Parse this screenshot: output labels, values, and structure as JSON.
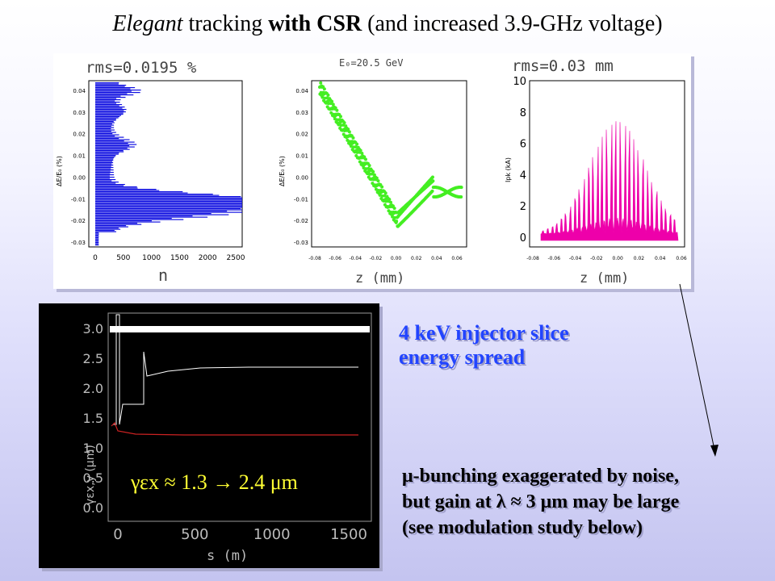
{
  "title": {
    "part1": "Elegant",
    "part2": " tracking ",
    "part3": "with CSR",
    "part4": " (and increased 3.9-GHz voltage)"
  },
  "hist_plot": {
    "header": "rms=0.0195 %",
    "xlabel": "n",
    "ylabel": "ΔE/E₀ (%)",
    "y_ticks": [
      "0.04",
      "0.03",
      "0.02",
      "0.01",
      "0.00",
      "-0.01",
      "-0.02",
      "-0.03"
    ],
    "x_ticks": [
      "0",
      "500",
      "1000",
      "1500",
      "2000",
      "2500"
    ]
  },
  "phase_plot": {
    "header": "E₀=20.5 GeV",
    "xlabel": "z (mm)",
    "ylabel": "ΔE/E₀ (%)",
    "y_ticks": [
      "0.04",
      "0.03",
      "0.02",
      "0.01",
      "0.00",
      "-0.01",
      "-0.02",
      "-0.03"
    ],
    "x_ticks": [
      "-0.08",
      "-0.06",
      "-0.04",
      "-0.02",
      "0.00",
      "0.02",
      "0.04",
      "0.06"
    ]
  },
  "current_plot": {
    "header": "rms=0.03 mm",
    "xlabel": "z (mm)",
    "ylabel": "Ipk (kA)",
    "y_ticks": [
      "10",
      "8",
      "6",
      "4",
      "2",
      "0"
    ],
    "x_ticks": [
      "-0.08",
      "-0.06",
      "-0.04",
      "-0.02",
      "0.00",
      "0.02",
      "0.04",
      "0.06"
    ]
  },
  "emittance_plot": {
    "xlabel": "s (m)",
    "ylabel": "γεx,y (μm)",
    "y_ticks": [
      "3.0",
      "2.5",
      "2.0",
      "1.5",
      "1.0",
      "0.5",
      "0.0"
    ],
    "x_ticks": [
      "0",
      "500",
      "1000",
      "1500"
    ],
    "annotation": "γεx ≈ 1.3 → 2.4 μm",
    "colors": {
      "background": "#000000",
      "white_trace": "#ffffff",
      "red_trace": "#cc2222",
      "annotation": "#ffff33"
    }
  },
  "notes": {
    "injector_line1": "4 keV injector slice",
    "injector_line2": "energy spread",
    "bunching_line1": "μ-bunching exaggerated by noise,",
    "bunching_line2": "but gain at λ ≈ 3 μm may be large",
    "bunching_line3": "(see modulation study below)"
  },
  "colors": {
    "hist": "#1010e0",
    "phase": "#44ee22",
    "current": "#ee00aa",
    "note_blue": "#2244ff"
  }
}
